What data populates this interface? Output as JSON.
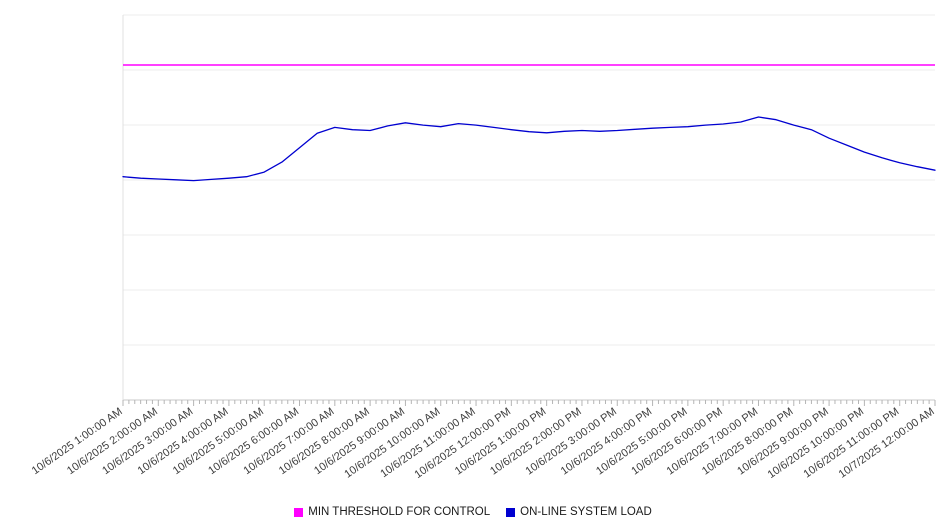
{
  "page": {
    "background": "#ffffff"
  },
  "chart_data": {
    "type": "line",
    "title": "",
    "legend_position": "bottom",
    "x_range_hours": [
      1,
      24
    ],
    "x_minor_ticks_per_hour": 6,
    "ylim": [
      0,
      100
    ],
    "y_axis": {
      "labels_visible": false,
      "gridlines": 8
    },
    "x_labels": [
      "10/6/2025 1:00:00 AM",
      "10/6/2025 2:00:00 AM",
      "10/6/2025 3:00:00 AM",
      "10/6/2025 4:00:00 AM",
      "10/6/2025 5:00:00 AM",
      "10/6/2025 6:00:00 AM",
      "10/6/2025 7:00:00 AM",
      "10/6/2025 8:00:00 AM",
      "10/6/2025 9:00:00 AM",
      "10/6/2025 10:00:00 AM",
      "10/6/2025 11:00:00 AM",
      "10/6/2025 12:00:00 PM",
      "10/6/2025 1:00:00 PM",
      "10/6/2025 2:00:00 PM",
      "10/6/2025 3:00:00 PM",
      "10/6/2025 4:00:00 PM",
      "10/6/2025 5:00:00 PM",
      "10/6/2025 6:00:00 PM",
      "10/6/2025 7:00:00 PM",
      "10/6/2025 8:00:00 PM",
      "10/6/2025 9:00:00 PM",
      "10/6/2025 10:00:00 PM",
      "10/6/2025 11:00:00 PM",
      "10/7/2025 12:00:00 AM"
    ],
    "series": [
      {
        "name": "MIN THRESHOLD FOR CONTROL",
        "type": "threshold",
        "color": "#ff00ff",
        "value": 87
      },
      {
        "name": "ON-LINE SYSTEM LOAD",
        "type": "line",
        "color": "#0000d0",
        "x_hours": [
          1,
          1.5,
          2,
          2.5,
          3,
          3.5,
          4,
          4.5,
          5,
          5.5,
          6,
          6.5,
          7,
          7.5,
          8,
          8.5,
          9,
          9.5,
          10,
          10.5,
          11,
          11.5,
          12,
          12.5,
          13,
          13.5,
          14,
          14.5,
          15,
          15.5,
          16,
          16.5,
          17,
          17.5,
          18,
          18.5,
          19,
          19.5,
          20,
          20.5,
          21,
          21.5,
          22,
          22.5,
          23,
          23.5,
          24
        ],
        "values": [
          58.0,
          57.6,
          57.4,
          57.2,
          57.0,
          57.3,
          57.6,
          58.0,
          59.2,
          61.8,
          65.5,
          69.3,
          70.8,
          70.2,
          70.0,
          71.2,
          72.0,
          71.4,
          71.0,
          71.8,
          71.4,
          70.8,
          70.2,
          69.7,
          69.4,
          69.8,
          70.0,
          69.8,
          70.0,
          70.3,
          70.6,
          70.8,
          71.0,
          71.4,
          71.7,
          72.2,
          73.5,
          72.8,
          71.4,
          70.2,
          68.0,
          66.2,
          64.4,
          62.9,
          61.6,
          60.6,
          59.7
        ]
      }
    ]
  }
}
